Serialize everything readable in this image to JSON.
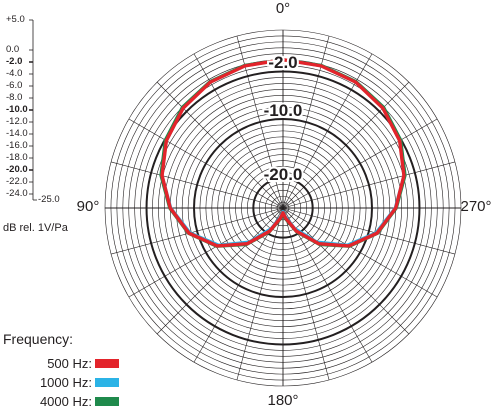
{
  "chart_data": {
    "type": "polar",
    "angle_labels": [
      "0°",
      "90°",
      "180°",
      "270°"
    ],
    "ring_labels": [
      "-2.0",
      "-10.0",
      "-20.0"
    ],
    "radial_scale": [
      "+5.0",
      "0.0",
      "-2.0",
      "-4.0",
      "-6.0",
      "-8.0",
      "-10.0",
      "-12.0",
      "-14.0",
      "-16.0",
      "-18.0",
      "-20.0",
      "-22.0",
      "-24.0",
      "-25.0"
    ],
    "unit_label": "dB rel. 1V/Pa",
    "rlim": [
      -25.0,
      5.0
    ],
    "legend_title": "Frequency:",
    "series": [
      {
        "name": "500 Hz:",
        "color": "#e3242b",
        "angles": [
          0,
          15,
          30,
          45,
          60,
          75,
          90,
          105,
          120,
          135,
          150,
          165,
          180
        ],
        "values": [
          0.0,
          -0.2,
          -0.5,
          -1.2,
          -2.3,
          -3.9,
          -6.0,
          -8.6,
          -12.2,
          -16.5,
          -20.5,
          -23.2,
          -24.2
        ]
      },
      {
        "name": "1000 Hz:",
        "color": "#2bb3e6",
        "angles": [
          0,
          15,
          30,
          45,
          60,
          75,
          90,
          105,
          120,
          135,
          150,
          165,
          180
        ],
        "values": [
          0.0,
          -0.2,
          -0.5,
          -1.2,
          -2.3,
          -3.9,
          -6.1,
          -8.8,
          -12.5,
          -16.9,
          -21.0,
          -23.5,
          -24.4
        ]
      },
      {
        "name": "4000 Hz:",
        "color": "#1f8a4c",
        "angles": [
          0,
          15,
          30,
          45,
          60,
          75,
          90,
          105,
          120,
          135,
          150,
          165,
          180
        ],
        "values": [
          0.0,
          -0.1,
          -0.4,
          -1.0,
          -2.1,
          -3.7,
          -5.9,
          -8.5,
          -12.1,
          -16.3,
          -20.3,
          -23.0,
          -24.0
        ]
      }
    ]
  }
}
